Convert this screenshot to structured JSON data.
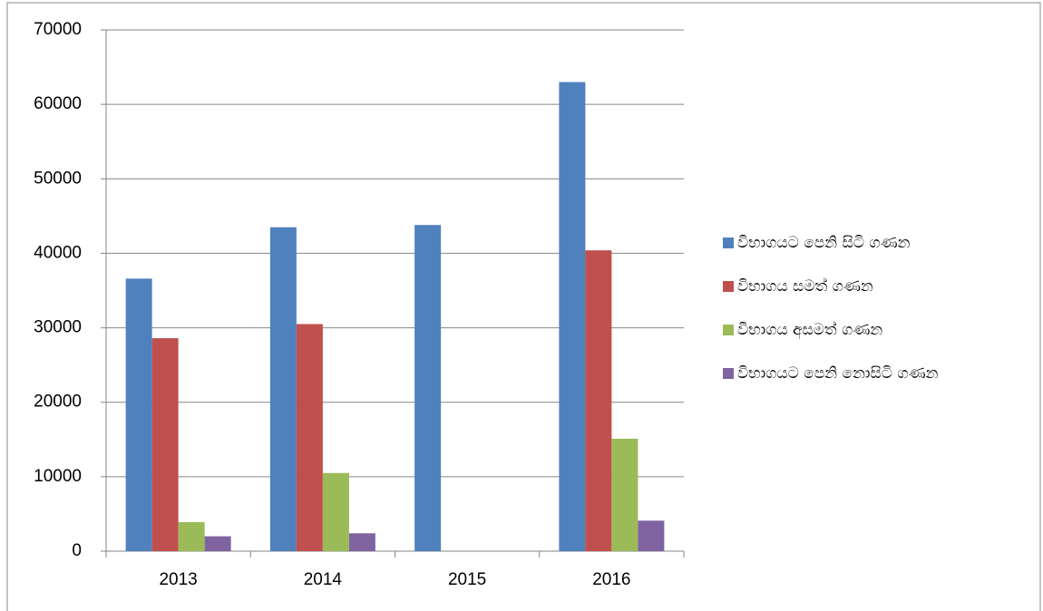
{
  "chart_data": {
    "type": "bar",
    "categories": [
      "2013",
      "2014",
      "2015",
      "2016"
    ],
    "series": [
      {
        "name": "විභාගයට පෙනි සිටි ගණන",
        "color": "#4f81bd",
        "values": [
          36600,
          43500,
          43800,
          63000
        ]
      },
      {
        "name": "විභාගය සමත් ගණන",
        "color": "#c0504d",
        "values": [
          28600,
          30500,
          null,
          40400
        ]
      },
      {
        "name": "විභාගය අසමත් ගණන",
        "color": "#9bbb59",
        "values": [
          3900,
          10500,
          null,
          15100
        ]
      },
      {
        "name": "විභාගයට පෙනි නොසිටි ගණන",
        "color": "#8064a2",
        "values": [
          2000,
          2400,
          null,
          4100
        ]
      }
    ],
    "ylim": [
      0,
      70000
    ],
    "yticks": [
      0,
      10000,
      20000,
      30000,
      40000,
      50000,
      60000,
      70000
    ],
    "grid": true,
    "legend": "right"
  }
}
